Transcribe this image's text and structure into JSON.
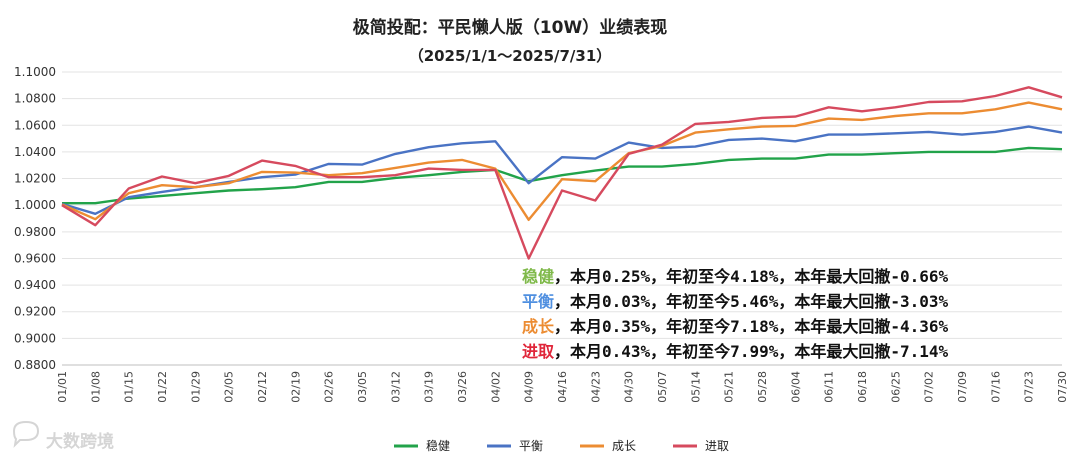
{
  "chart_data": {
    "type": "line",
    "title": "极简投配：平民懒人版（10W）业绩表现",
    "subtitle": "（2025/1/1～2025/7/31）",
    "xlabel": "",
    "ylabel": "",
    "ylim": [
      0.88,
      1.1
    ],
    "yticks": [
      "0.8800",
      "0.9000",
      "0.9200",
      "0.9400",
      "0.9600",
      "0.9800",
      "1.0000",
      "1.0200",
      "1.0400",
      "1.0600",
      "1.0800",
      "1.1000"
    ],
    "grid": true,
    "legend_position": "bottom",
    "categories": [
      "01/01",
      "01/08",
      "01/15",
      "01/22",
      "01/29",
      "02/05",
      "02/12",
      "02/19",
      "02/26",
      "03/05",
      "03/12",
      "03/19",
      "03/26",
      "04/02",
      "04/09",
      "04/16",
      "04/23",
      "04/30",
      "05/07",
      "05/14",
      "05/21",
      "05/28",
      "06/04",
      "06/11",
      "06/18",
      "06/25",
      "07/02",
      "07/09",
      "07/16",
      "07/23",
      "07/30"
    ],
    "series": [
      {
        "name": "稳健",
        "color": "#22a34a",
        "values": [
          1.0015,
          1.0015,
          1.005,
          1.007,
          1.009,
          1.011,
          1.012,
          1.0135,
          1.0175,
          1.0175,
          1.0205,
          1.0225,
          1.025,
          1.0265,
          1.018,
          1.0225,
          1.026,
          1.029,
          1.029,
          1.031,
          1.034,
          1.035,
          1.035,
          1.038,
          1.038,
          1.039,
          1.04,
          1.04,
          1.04,
          1.043,
          1.042
        ]
      },
      {
        "name": "平衡",
        "color": "#4a73c4",
        "values": [
          1.001,
          0.9935,
          1.006,
          1.01,
          1.0135,
          1.0175,
          1.021,
          1.023,
          1.031,
          1.0305,
          1.0385,
          1.0435,
          1.0465,
          1.048,
          1.0165,
          1.036,
          1.035,
          1.047,
          1.043,
          1.044,
          1.049,
          1.05,
          1.048,
          1.053,
          1.053,
          1.054,
          1.055,
          1.053,
          1.055,
          1.059,
          1.0545
        ]
      },
      {
        "name": "成长",
        "color": "#ec8c32",
        "values": [
          1.0005,
          0.9895,
          1.009,
          1.015,
          1.0135,
          1.0165,
          1.025,
          1.0245,
          1.0225,
          1.024,
          1.028,
          1.032,
          1.034,
          1.0275,
          0.989,
          1.0195,
          1.018,
          1.039,
          1.0445,
          1.0545,
          1.057,
          1.059,
          1.0595,
          1.065,
          1.064,
          1.067,
          1.069,
          1.069,
          1.072,
          1.077,
          1.072
        ]
      },
      {
        "name": "进取",
        "color": "#d64a5e",
        "values": [
          1.0,
          0.985,
          1.0125,
          1.0215,
          1.0165,
          1.022,
          1.0335,
          1.0295,
          1.021,
          1.021,
          1.0225,
          1.0275,
          1.0265,
          1.0265,
          0.96,
          1.011,
          1.0035,
          1.0385,
          1.0455,
          1.061,
          1.0625,
          1.0655,
          1.0665,
          1.0735,
          1.0705,
          1.0735,
          1.0775,
          1.078,
          1.082,
          1.0885,
          1.081
        ]
      }
    ],
    "annotations": [
      {
        "name": "稳健",
        "text": "，本月0.25%，年初至今4.18%，本年最大回撤-0.66%",
        "color": "#7fb94a"
      },
      {
        "name": "平衡",
        "text": "，本月0.03%，年初至今5.46%，本年最大回撤-3.03%",
        "color": "#4f8fe0"
      },
      {
        "name": "成长",
        "text": "，本月0.35%，年初至今7.18%，本年最大回撤-4.36%",
        "color": "#ec8c32"
      },
      {
        "name": "进取",
        "text": "，本月0.43%，年初至今7.99%，本年最大回撤-7.14%",
        "color": "#e0263a"
      }
    ]
  },
  "watermark": {
    "text": "大数跨境",
    "icon": "chat-bubble-icon"
  }
}
